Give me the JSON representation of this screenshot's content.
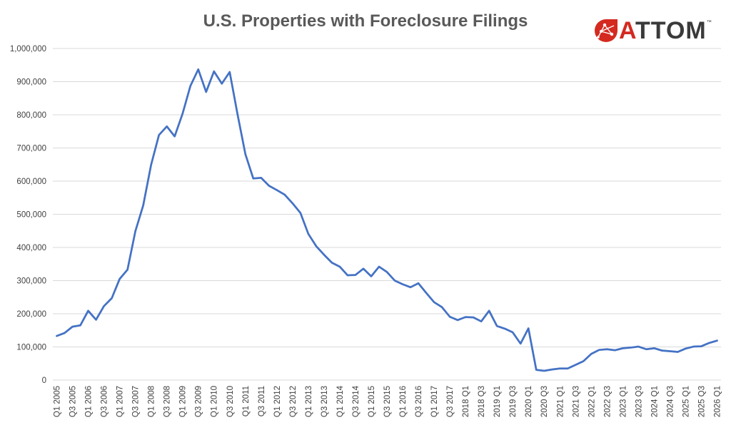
{
  "title": "U.S. Properties with Foreclosure Filings",
  "logo": {
    "text_first": "A",
    "text_rest": "TTOM",
    "tm": "™",
    "brand_color": "#d42a20"
  },
  "colors": {
    "line": "#4472c4",
    "grid": "#d9d9d9",
    "text": "#404040"
  },
  "chart_data": {
    "type": "line",
    "title": "U.S. Properties with Foreclosure Filings",
    "xlabel": "",
    "ylabel": "",
    "ylim": [
      0,
      1000000
    ],
    "yticks": [
      "0",
      "100,000",
      "200,000",
      "300,000",
      "400,000",
      "500,000",
      "600,000",
      "700,000",
      "800,000",
      "900,000",
      "1,000,000"
    ],
    "grid": true,
    "legend": "none",
    "x_tick_labels": [
      "Q1 2005",
      "Q3 2005",
      "Q1 2006",
      "Q3 2006",
      "Q1 2007",
      "Q3 2007",
      "Q1 2008",
      "Q3 2008",
      "Q1 2009",
      "Q3 2009",
      "Q1 2010",
      "Q3 2010",
      "Q1 2011",
      "Q3 2011",
      "Q1 2012",
      "Q3 2012",
      "Q1 2013",
      "Q3 2013",
      "Q1 2014",
      "Q3 2014",
      "Q1 2015",
      "Q3 2015",
      "Q1 2016",
      "Q3 2016",
      "Q1 2017",
      "Q3 2017",
      "2018 Q1",
      "2018 Q3",
      "2019 Q1",
      "2019 Q3",
      "2020 Q1",
      "2020 Q3",
      "2021 Q1",
      "2021 Q3",
      "2022 Q1",
      "2022 Q3",
      "2023 Q1",
      "2023 Q3",
      "2024 Q1",
      "2024 Q3",
      "2025 Q1",
      "2025 Q3",
      "2026 Q1"
    ],
    "series": [
      {
        "values": [
          133000,
          142000,
          161000,
          165000,
          209000,
          182000,
          223000,
          247000,
          305000,
          333000,
          449000,
          527000,
          649000,
          739000,
          765000,
          735000,
          803000,
          887000,
          937000,
          869000,
          931000,
          894000,
          929000,
          801000,
          681000,
          608000,
          610000,
          586000,
          573000,
          559000,
          533000,
          504000,
          441000,
          404000,
          378000,
          354000,
          342000,
          316000,
          317000,
          336000,
          313000,
          342000,
          326000,
          300000,
          289000,
          280000,
          292000,
          263000,
          235000,
          220000,
          191000,
          181000,
          190000,
          189000,
          177000,
          209000,
          163000,
          155000,
          144000,
          110000,
          156000,
          31000,
          28000,
          32000,
          35000,
          35000,
          46000,
          57000,
          79000,
          91000,
          93000,
          90000,
          96000,
          98000,
          101000,
          93000,
          96000,
          89000,
          87000,
          85000,
          95000,
          101000,
          102000,
          112000,
          119000
        ]
      }
    ]
  }
}
